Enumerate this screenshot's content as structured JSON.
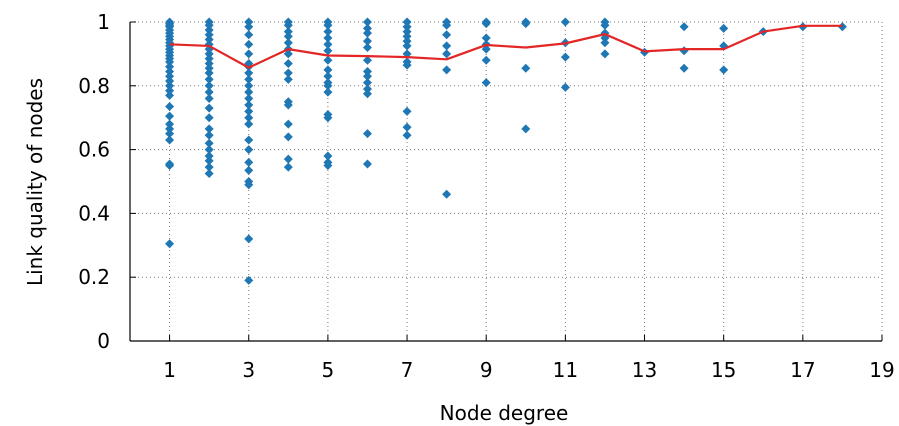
{
  "chart_data": {
    "type": "scatter",
    "title": "",
    "xlabel": "Node degree",
    "ylabel": "Link quality of nodes",
    "xlim": [
      0,
      19
    ],
    "ylim": [
      0,
      1
    ],
    "x_ticks": [
      1,
      3,
      5,
      7,
      9,
      11,
      13,
      15,
      17,
      19
    ],
    "y_ticks": [
      0,
      0.2,
      0.4,
      0.6,
      0.8,
      1
    ],
    "x_tick_labels": [
      "1",
      "3",
      "5",
      "7",
      "9",
      "11",
      "13",
      "15",
      "17",
      "19"
    ],
    "y_tick_labels": [
      "0",
      "0.2",
      "0.4",
      "0.6",
      "0.8",
      "1"
    ],
    "grid": true,
    "grid_style": "dotted",
    "series": [
      {
        "type": "scatter",
        "color": "#1f77b4",
        "marker": "diamond",
        "points": [
          [
            1,
            1.0
          ],
          [
            1,
            0.995
          ],
          [
            1,
            0.99
          ],
          [
            1,
            0.985
          ],
          [
            1,
            0.975
          ],
          [
            1,
            0.965
          ],
          [
            1,
            0.955
          ],
          [
            1,
            0.945
          ],
          [
            1,
            0.935
          ],
          [
            1,
            0.925
          ],
          [
            1,
            0.915
          ],
          [
            1,
            0.905
          ],
          [
            1,
            0.895
          ],
          [
            1,
            0.885
          ],
          [
            1,
            0.875
          ],
          [
            1,
            0.86
          ],
          [
            1,
            0.845
          ],
          [
            1,
            0.83
          ],
          [
            1,
            0.815
          ],
          [
            1,
            0.8
          ],
          [
            1,
            0.785
          ],
          [
            1,
            0.77
          ],
          [
            1,
            0.735
          ],
          [
            1,
            0.705
          ],
          [
            1,
            0.68
          ],
          [
            1,
            0.665
          ],
          [
            1,
            0.65
          ],
          [
            1,
            0.63
          ],
          [
            1,
            0.555
          ],
          [
            1,
            0.55
          ],
          [
            1,
            0.305
          ],
          [
            2,
            1.0
          ],
          [
            2,
            0.99
          ],
          [
            2,
            0.975
          ],
          [
            2,
            0.96
          ],
          [
            2,
            0.945
          ],
          [
            2,
            0.93
          ],
          [
            2,
            0.915
          ],
          [
            2,
            0.9
          ],
          [
            2,
            0.885
          ],
          [
            2,
            0.87
          ],
          [
            2,
            0.855
          ],
          [
            2,
            0.84
          ],
          [
            2,
            0.82
          ],
          [
            2,
            0.8
          ],
          [
            2,
            0.78
          ],
          [
            2,
            0.76
          ],
          [
            2,
            0.73
          ],
          [
            2,
            0.7
          ],
          [
            2,
            0.665
          ],
          [
            2,
            0.645
          ],
          [
            2,
            0.62
          ],
          [
            2,
            0.6
          ],
          [
            2,
            0.58
          ],
          [
            2,
            0.565
          ],
          [
            2,
            0.545
          ],
          [
            2,
            0.525
          ],
          [
            3,
            1.0
          ],
          [
            3,
            0.985
          ],
          [
            3,
            0.96
          ],
          [
            3,
            0.93
          ],
          [
            3,
            0.9
          ],
          [
            3,
            0.87
          ],
          [
            3,
            0.86
          ],
          [
            3,
            0.84
          ],
          [
            3,
            0.82
          ],
          [
            3,
            0.8
          ],
          [
            3,
            0.78
          ],
          [
            3,
            0.76
          ],
          [
            3,
            0.74
          ],
          [
            3,
            0.72
          ],
          [
            3,
            0.7
          ],
          [
            3,
            0.68
          ],
          [
            3,
            0.63
          ],
          [
            3,
            0.6
          ],
          [
            3,
            0.56
          ],
          [
            3,
            0.535
          ],
          [
            3,
            0.5
          ],
          [
            3,
            0.49
          ],
          [
            3,
            0.32
          ],
          [
            3,
            0.19
          ],
          [
            4,
            1.0
          ],
          [
            4,
            0.99
          ],
          [
            4,
            0.97
          ],
          [
            4,
            0.955
          ],
          [
            4,
            0.935
          ],
          [
            4,
            0.915
          ],
          [
            4,
            0.9
          ],
          [
            4,
            0.87
          ],
          [
            4,
            0.84
          ],
          [
            4,
            0.82
          ],
          [
            4,
            0.75
          ],
          [
            4,
            0.74
          ],
          [
            4,
            0.68
          ],
          [
            4,
            0.64
          ],
          [
            4,
            0.57
          ],
          [
            4,
            0.545
          ],
          [
            5,
            1.0
          ],
          [
            5,
            0.99
          ],
          [
            5,
            0.97
          ],
          [
            5,
            0.95
          ],
          [
            5,
            0.93
          ],
          [
            5,
            0.91
          ],
          [
            5,
            0.88
          ],
          [
            5,
            0.85
          ],
          [
            5,
            0.83
          ],
          [
            5,
            0.81
          ],
          [
            5,
            0.8
          ],
          [
            5,
            0.78
          ],
          [
            5,
            0.71
          ],
          [
            5,
            0.7
          ],
          [
            5,
            0.58
          ],
          [
            5,
            0.56
          ],
          [
            5,
            0.55
          ],
          [
            6,
            1.0
          ],
          [
            6,
            0.98
          ],
          [
            6,
            0.965
          ],
          [
            6,
            0.94
          ],
          [
            6,
            0.92
          ],
          [
            6,
            0.88
          ],
          [
            6,
            0.845
          ],
          [
            6,
            0.83
          ],
          [
            6,
            0.81
          ],
          [
            6,
            0.79
          ],
          [
            6,
            0.775
          ],
          [
            6,
            0.65
          ],
          [
            6,
            0.555
          ],
          [
            7,
            1.0
          ],
          [
            7,
            0.985
          ],
          [
            7,
            0.97
          ],
          [
            7,
            0.955
          ],
          [
            7,
            0.94
          ],
          [
            7,
            0.925
          ],
          [
            7,
            0.9
          ],
          [
            7,
            0.875
          ],
          [
            7,
            0.865
          ],
          [
            7,
            0.72
          ],
          [
            7,
            0.67
          ],
          [
            7,
            0.645
          ],
          [
            8,
            1.0
          ],
          [
            8,
            0.99
          ],
          [
            8,
            0.96
          ],
          [
            8,
            0.925
          ],
          [
            8,
            0.9
          ],
          [
            8,
            0.85
          ],
          [
            8,
            0.46
          ],
          [
            9,
            1.0
          ],
          [
            9,
            0.995
          ],
          [
            9,
            0.95
          ],
          [
            9,
            0.93
          ],
          [
            9,
            0.915
          ],
          [
            9,
            0.88
          ],
          [
            9,
            0.81
          ],
          [
            10,
            1.0
          ],
          [
            10,
            0.995
          ],
          [
            10,
            0.855
          ],
          [
            10,
            0.665
          ],
          [
            11,
            1.0
          ],
          [
            11,
            0.935
          ],
          [
            11,
            0.89
          ],
          [
            11,
            0.795
          ],
          [
            12,
            1.0
          ],
          [
            12,
            0.99
          ],
          [
            12,
            0.965
          ],
          [
            12,
            0.95
          ],
          [
            12,
            0.935
          ],
          [
            12,
            0.9
          ],
          [
            13,
            0.905
          ],
          [
            14,
            0.985
          ],
          [
            14,
            0.91
          ],
          [
            14,
            0.855
          ],
          [
            15,
            0.98
          ],
          [
            15,
            0.925
          ],
          [
            15,
            0.85
          ],
          [
            16,
            0.97
          ],
          [
            17,
            0.985
          ],
          [
            18,
            0.985
          ]
        ]
      },
      {
        "type": "line",
        "color": "#e32626",
        "x": [
          1,
          2,
          3,
          4,
          5,
          6,
          7,
          8,
          9,
          10,
          11,
          12,
          13,
          14,
          15,
          16,
          17,
          18
        ],
        "y": [
          0.93,
          0.925,
          0.857,
          0.915,
          0.895,
          0.893,
          0.89,
          0.883,
          0.928,
          0.92,
          0.933,
          0.962,
          0.908,
          0.915,
          0.915,
          0.97,
          0.988,
          0.988
        ]
      }
    ]
  }
}
